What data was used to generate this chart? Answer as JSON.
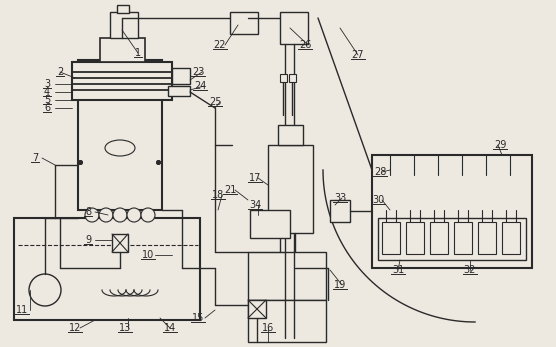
{
  "bg_color": "#ede8e0",
  "line_color": "#2a2a2a",
  "figsize": [
    5.56,
    3.47
  ],
  "dpi": 100
}
